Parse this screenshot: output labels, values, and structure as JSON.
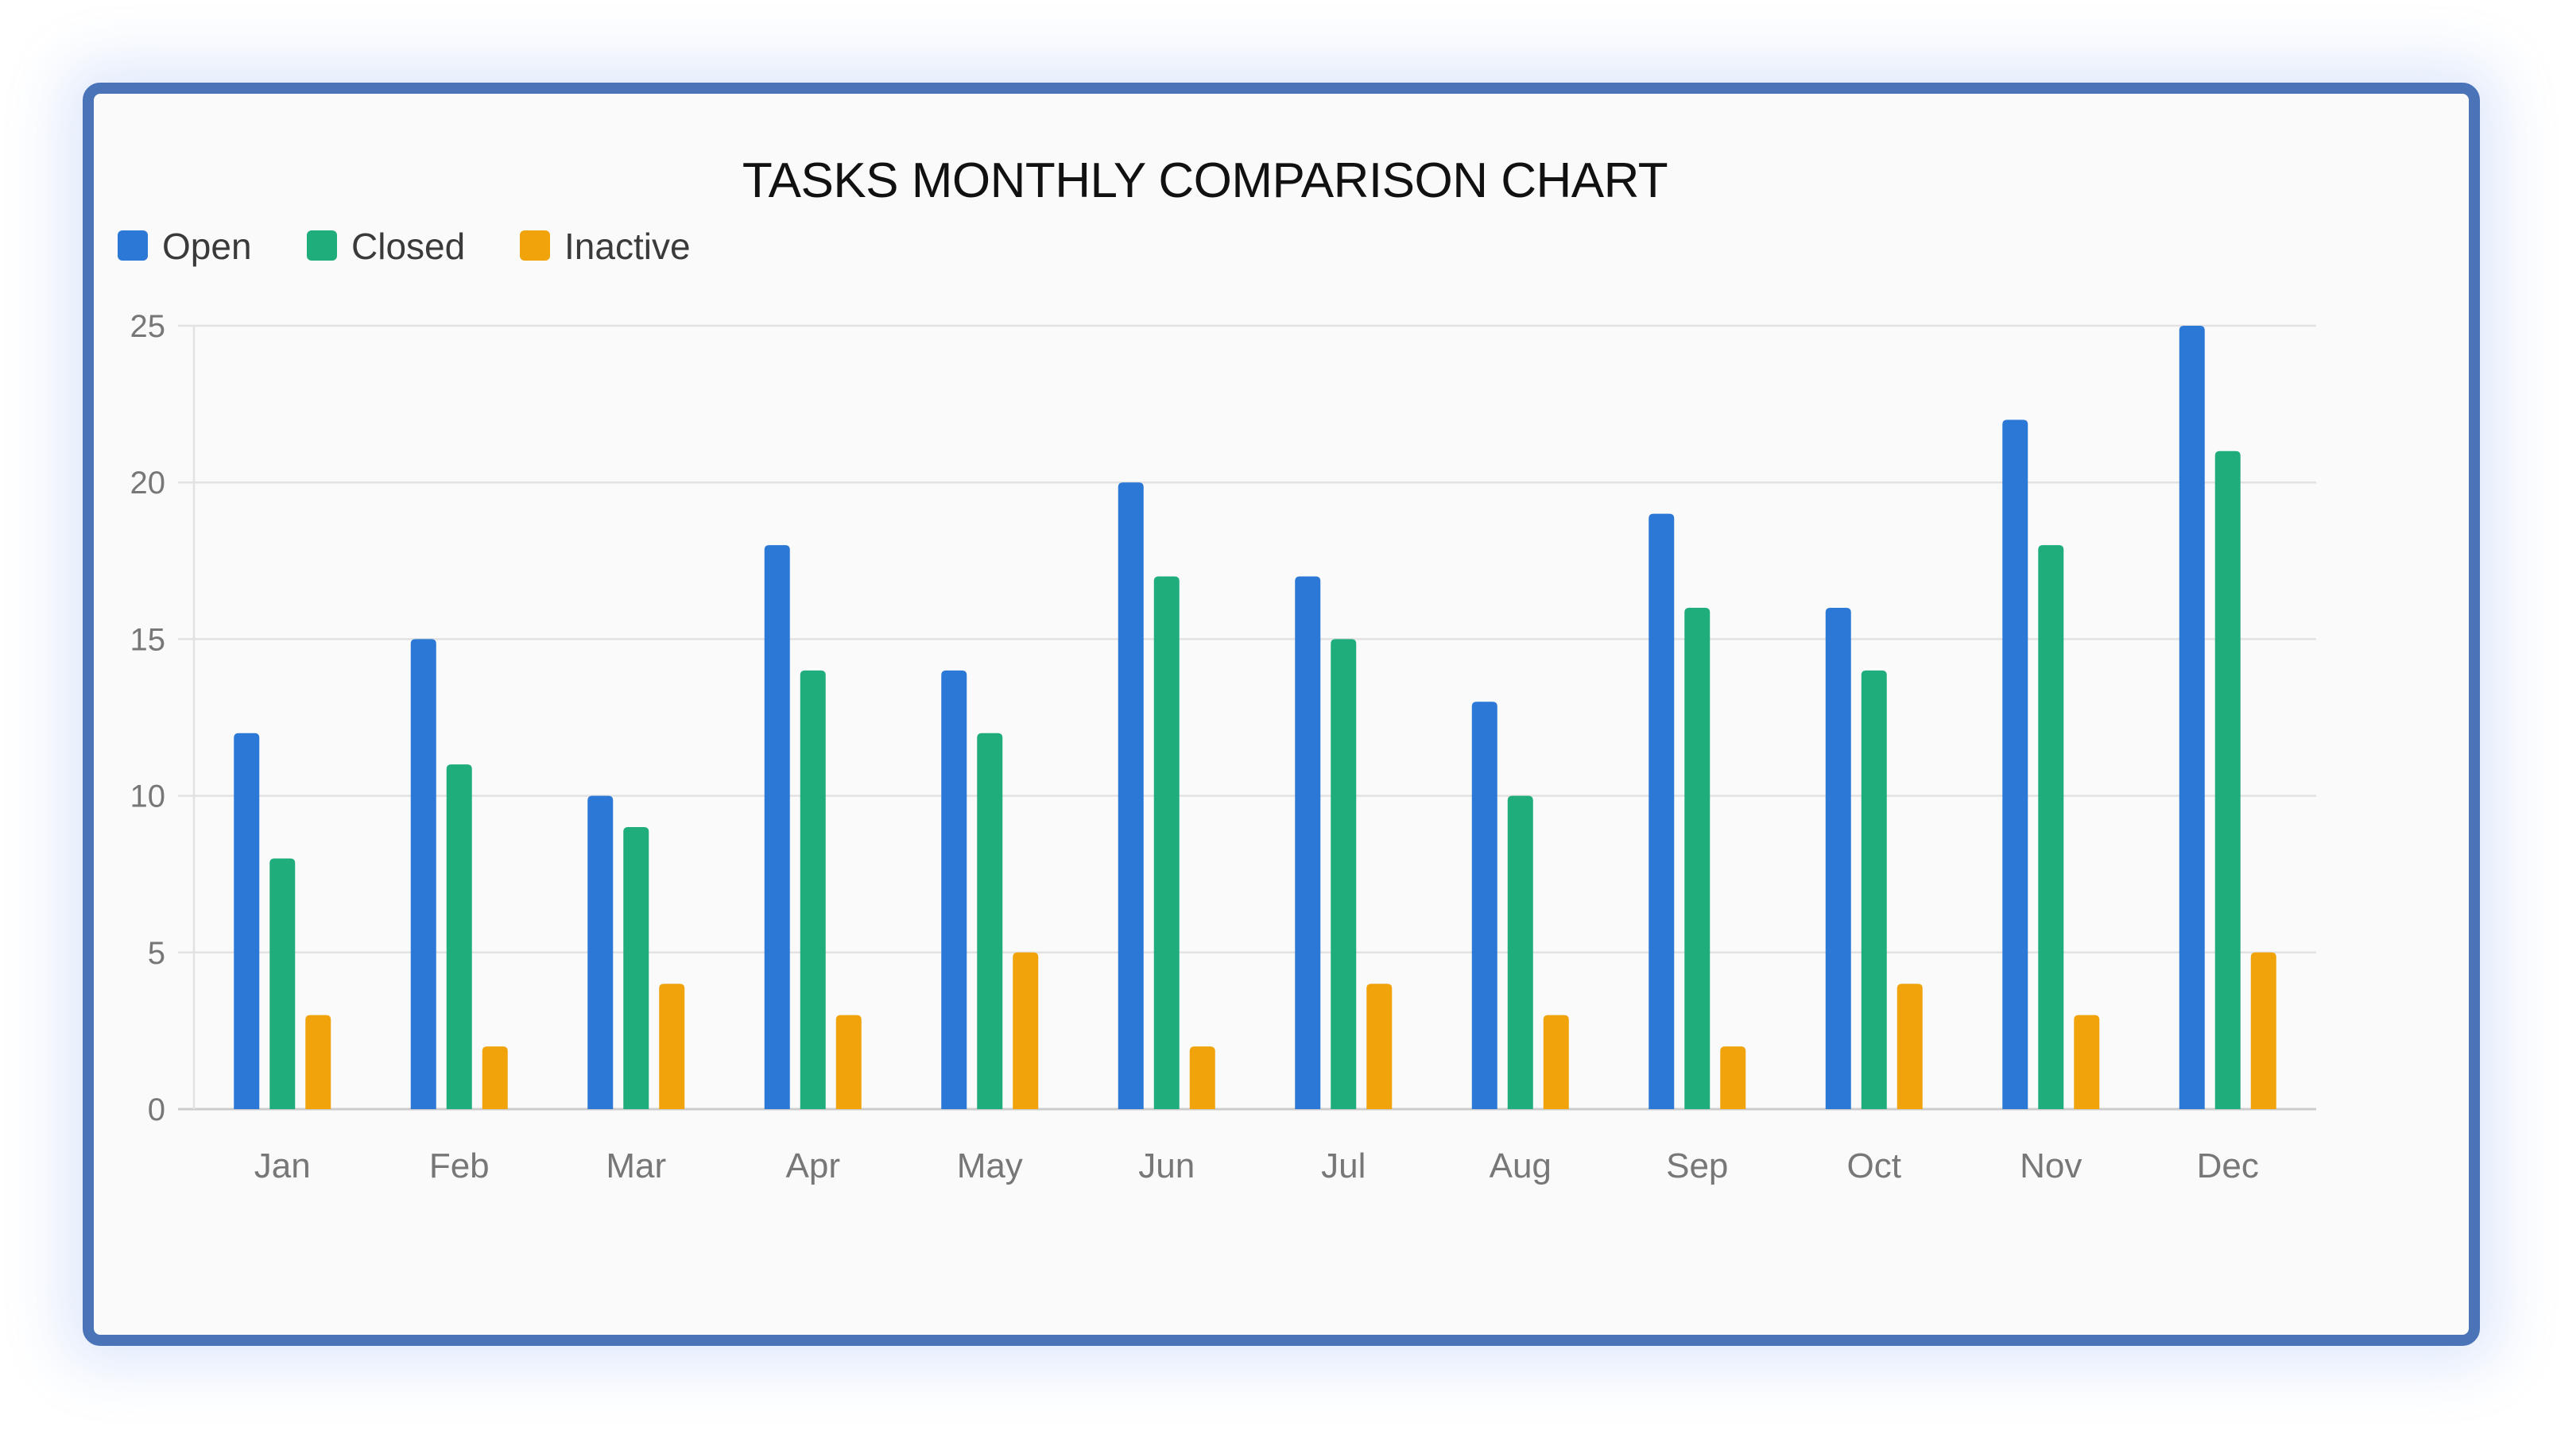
{
  "chart_data": {
    "type": "bar",
    "title": "TASKS MONTHLY COMPARISON CHART",
    "xlabel": "",
    "ylabel": "",
    "categories": [
      "Jan",
      "Feb",
      "Mar",
      "Apr",
      "May",
      "Jun",
      "Jul",
      "Aug",
      "Sep",
      "Oct",
      "Nov",
      "Dec"
    ],
    "series": [
      {
        "name": "Open",
        "color": "#2b78d6",
        "values": [
          12,
          15,
          10,
          18,
          14,
          20,
          17,
          13,
          19,
          16,
          22,
          25
        ]
      },
      {
        "name": "Closed",
        "color": "#1fae7b",
        "values": [
          8,
          11,
          9,
          14,
          12,
          17,
          15,
          10,
          16,
          14,
          18,
          21
        ]
      },
      {
        "name": "Inactive",
        "color": "#f0a30a",
        "values": [
          3,
          2,
          4,
          3,
          5,
          2,
          4,
          3,
          2,
          4,
          3,
          5
        ]
      }
    ],
    "ylim": [
      0,
      25
    ],
    "yticks": [
      0,
      5,
      10,
      15,
      20,
      25
    ],
    "grid": true,
    "legend_position": "top-left"
  },
  "colors": {
    "border": "#4a73b8",
    "background": "#fafafa",
    "grid": "#e2e2e2",
    "axis": "#cccccc"
  }
}
